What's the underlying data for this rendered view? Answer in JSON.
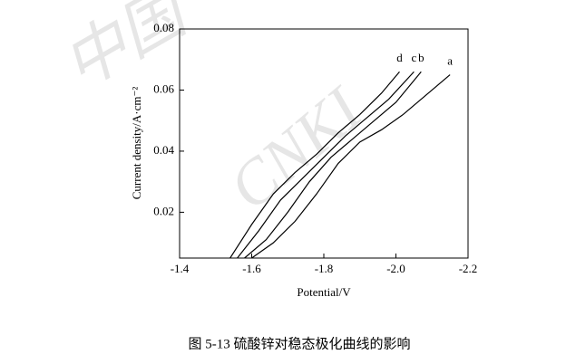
{
  "chart_data": {
    "type": "line",
    "xlabel": "Potential/V",
    "ylabel": "Current density/A·cm⁻²",
    "caption": "图 5-13  硫酸锌对稳态极化曲线的影响",
    "watermarks": [
      "中国",
      "CNKI"
    ],
    "xlim": [
      -1.4,
      -2.2
    ],
    "xticks": [
      -1.4,
      -1.6,
      -1.8,
      {
        "value": -2,
        "label": "-2.0"
      },
      -2.2
    ],
    "ylim": [
      0.005,
      0.08
    ],
    "yticks": [
      0.02,
      0.04,
      0.06,
      0.08
    ],
    "series": [
      {
        "name": "a",
        "color": "#000000",
        "x": [
          -1.6,
          -1.66,
          -1.72,
          -1.78,
          -1.84,
          -1.9,
          -1.96,
          -2.02,
          -2.08,
          -2.15
        ],
        "values": [
          0.005,
          0.01,
          0.017,
          0.026,
          0.036,
          0.043,
          0.047,
          0.052,
          0.058,
          0.065
        ]
      },
      {
        "name": "b",
        "color": "#000000",
        "x": [
          -1.58,
          -1.64,
          -1.7,
          -1.76,
          -1.82,
          -1.88,
          -1.94,
          -2.0,
          -2.07
        ],
        "values": [
          0.005,
          0.011,
          0.02,
          0.03,
          0.038,
          0.044,
          0.05,
          0.056,
          0.066
        ]
      },
      {
        "name": "c",
        "color": "#000000",
        "x": [
          -1.56,
          -1.62,
          -1.68,
          -1.74,
          -1.8,
          -1.86,
          -1.92,
          -1.98,
          -2.05
        ],
        "values": [
          0.005,
          0.014,
          0.024,
          0.031,
          0.038,
          0.045,
          0.051,
          0.057,
          0.066
        ]
      },
      {
        "name": "d",
        "color": "#000000",
        "x": [
          -1.54,
          -1.6,
          -1.66,
          -1.72,
          -1.78,
          -1.84,
          -1.9,
          -1.96,
          -2.01
        ],
        "values": [
          0.005,
          0.016,
          0.026,
          0.033,
          0.039,
          0.046,
          0.052,
          0.059,
          0.066
        ]
      }
    ]
  }
}
